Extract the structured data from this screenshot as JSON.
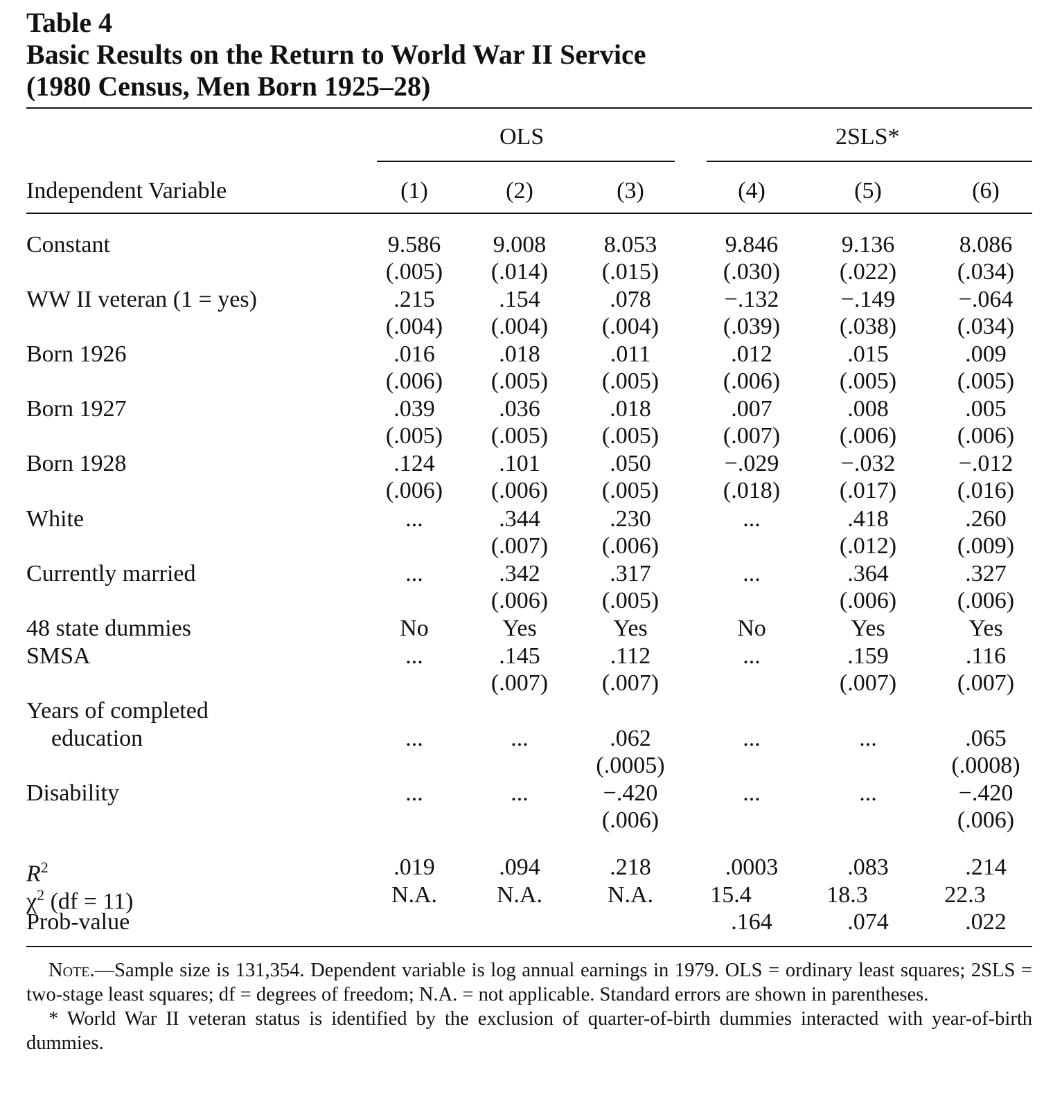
{
  "caption": {
    "label": "Table 4",
    "title_line1": "Basic Results on the Return to World War II Service",
    "title_line2": "(1980 Census, Men Born 1925–28)"
  },
  "header": {
    "group_ols": "OLS",
    "group_2sls": "2SLS*",
    "stub_label": "Independent Variable",
    "columns": [
      "(1)",
      "(2)",
      "(3)",
      "(4)",
      "(5)",
      "(6)"
    ]
  },
  "rows": [
    {
      "label": "Constant",
      "values": [
        "9.586",
        "9.008",
        "8.053",
        "9.846",
        "9.136",
        "8.086"
      ],
      "se": [
        "(.005)",
        "(.014)",
        "(.015)",
        "(.030)",
        "(.022)",
        "(.034)"
      ]
    },
    {
      "label": "WW II veteran (1 = yes)",
      "values": [
        ".215",
        ".154",
        ".078",
        "−.132",
        "−.149",
        "−.064"
      ],
      "se": [
        "(.004)",
        "(.004)",
        "(.004)",
        "(.039)",
        "(.038)",
        "(.034)"
      ]
    },
    {
      "label": "Born 1926",
      "values": [
        ".016",
        ".018",
        ".011",
        ".012",
        ".015",
        ".009"
      ],
      "se": [
        "(.006)",
        "(.005)",
        "(.005)",
        "(.006)",
        "(.005)",
        "(.005)"
      ]
    },
    {
      "label": "Born 1927",
      "values": [
        ".039",
        ".036",
        ".018",
        ".007",
        ".008",
        ".005"
      ],
      "se": [
        "(.005)",
        "(.005)",
        "(.005)",
        "(.007)",
        "(.006)",
        "(.006)"
      ]
    },
    {
      "label": "Born 1928",
      "values": [
        ".124",
        ".101",
        ".050",
        "−.029",
        "−.032",
        "−.012"
      ],
      "se": [
        "(.006)",
        "(.006)",
        "(.005)",
        "(.018)",
        "(.017)",
        "(.016)"
      ]
    },
    {
      "label": "White",
      "values": [
        "...",
        ".344",
        ".230",
        "...",
        ".418",
        ".260"
      ],
      "se": [
        "",
        "(.007)",
        "(.006)",
        "",
        "(.012)",
        "(.009)"
      ]
    },
    {
      "label": "Currently married",
      "values": [
        "...",
        ".342",
        ".317",
        "...",
        ".364",
        ".327"
      ],
      "se": [
        "",
        "(.006)",
        "(.005)",
        "",
        "(.006)",
        "(.006)"
      ]
    },
    {
      "label": "48 state dummies",
      "values": [
        "No",
        "Yes",
        "Yes",
        "No",
        "Yes",
        "Yes"
      ],
      "se": [
        "",
        "",
        "",
        "",
        "",
        ""
      ]
    },
    {
      "label": "SMSA",
      "values": [
        "...",
        ".145",
        ".112",
        "...",
        ".159",
        ".116"
      ],
      "se": [
        "",
        "(.007)",
        "(.007)",
        "",
        "(.007)",
        "(.007)"
      ]
    },
    {
      "label_line1": "Years of completed",
      "label": "education",
      "values": [
        "...",
        "...",
        ".062",
        "...",
        "...",
        ".065"
      ],
      "se": [
        "",
        "",
        "(.0005)",
        "",
        "",
        "(.0008)"
      ]
    },
    {
      "label": "Disability",
      "values": [
        "...",
        "...",
        "−.420",
        "...",
        "...",
        "−.420"
      ],
      "se": [
        "",
        "",
        "(.006)",
        "",
        "",
        "(.006)"
      ]
    }
  ],
  "stats": [
    {
      "label": "R",
      "sup": "2",
      "values": [
        ".019",
        ".094",
        ".218",
        ".0003",
        ".083",
        ".214"
      ]
    },
    {
      "label": "χ",
      "sup": "2",
      "label_rest": " (df = 11)",
      "values": [
        "N.A.",
        "N.A.",
        "N.A.",
        "15.4",
        "18.3",
        "22.3"
      ]
    },
    {
      "label": "Prob-value",
      "values": [
        "",
        "",
        "",
        ".164",
        ".074",
        ".022"
      ]
    }
  ],
  "notes": {
    "note_lead": "Note.",
    "note_text": "—Sample size is 131,354. Dependent variable is log annual earnings in 1979. OLS = ordinary least squares; 2SLS = two-stage least squares; df = degrees of freedom; N.A. = not applicable. Standard errors are shown in parentheses.",
    "footnote": "* World War II veteran status is identified by the exclusion of quarter-of-birth dummies interacted with year-of-birth dummies."
  }
}
